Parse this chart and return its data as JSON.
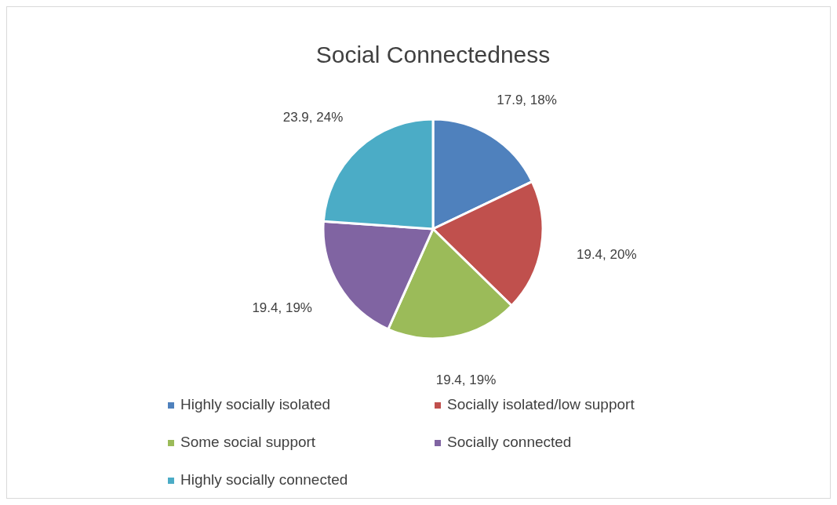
{
  "chart_data": {
    "type": "pie",
    "title": "Social Connectedness",
    "categories": [
      "Highly socially isolated",
      "Socially isolated/low support",
      "Some social support",
      "Socially connected",
      "Highly socially connected"
    ],
    "values": [
      17.9,
      19.4,
      19.4,
      19.4,
      23.9
    ],
    "value_labels": [
      "17.9, 18%",
      "19.4, 20%",
      "19.4, 19%",
      "19.4, 19%",
      "23.9, 24%"
    ],
    "colors": [
      "#4f81bd",
      "#c0504d",
      "#9bbb59",
      "#8064a2",
      "#4bacc6"
    ],
    "legend": "bottom"
  }
}
